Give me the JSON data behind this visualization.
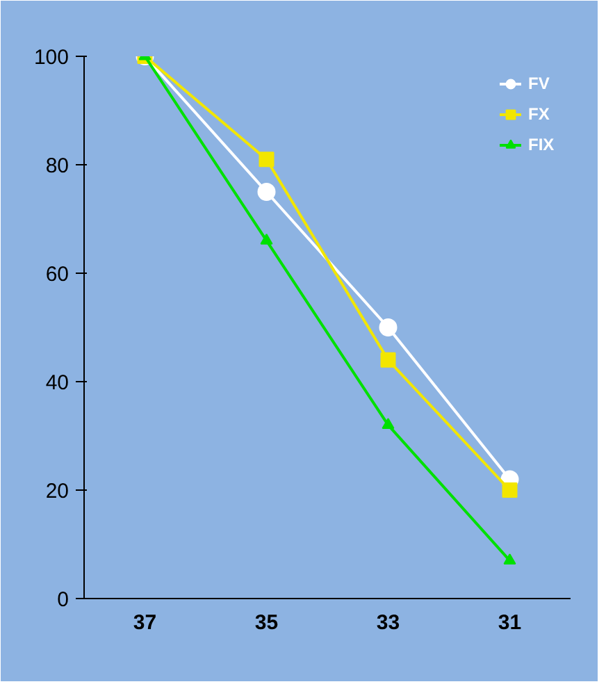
{
  "chart_data": {
    "type": "line",
    "categories": [
      "37",
      "35",
      "33",
      "31"
    ],
    "series": [
      {
        "name": "FV",
        "color": "#ffffff",
        "marker": "circle",
        "values": [
          100,
          75,
          50,
          22
        ]
      },
      {
        "name": "FX",
        "color": "#f2e600",
        "marker": "square",
        "values": [
          100,
          81,
          44,
          20
        ]
      },
      {
        "name": "FIX",
        "color": "#00e000",
        "marker": "triangle",
        "values": [
          100,
          66,
          32,
          7
        ]
      }
    ],
    "ylim": [
      0,
      100
    ],
    "yticks": [
      0,
      20,
      40,
      60,
      80,
      100
    ],
    "grid": false,
    "legend": "top right",
    "line_style": "solid"
  }
}
